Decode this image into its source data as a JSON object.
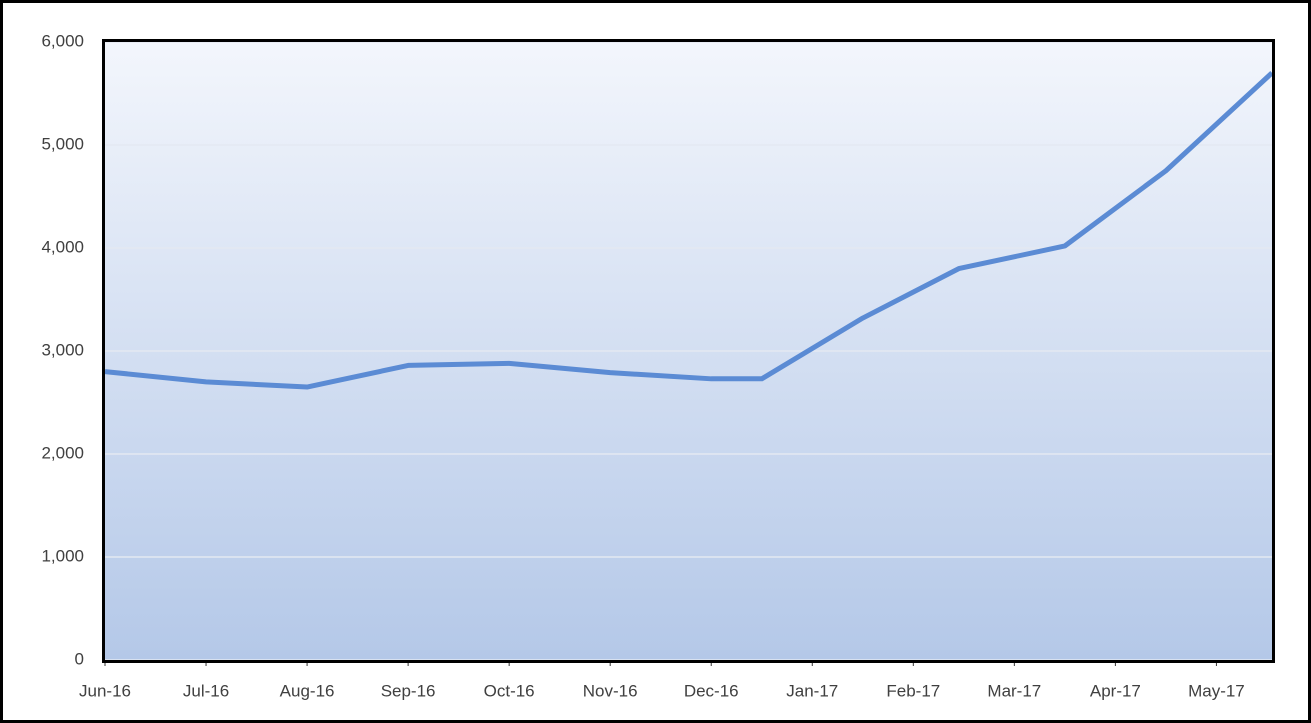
{
  "chart_data": {
    "type": "line",
    "x": [
      0,
      1,
      2,
      3,
      4,
      5,
      6,
      6.5,
      7.5,
      8.45,
      9.5,
      10.5,
      11.55
    ],
    "series": [
      {
        "color": "#5b8bd4",
        "values": [
          2800,
          2700,
          2650,
          2860,
          2880,
          2790,
          2730,
          2730,
          3320,
          3800,
          4020,
          4750,
          5700
        ]
      }
    ],
    "xlim": [
      0,
      11.55
    ],
    "xticks": [
      {
        "value": 0,
        "label": "Jun-16"
      },
      {
        "value": 1,
        "label": "Jul-16"
      },
      {
        "value": 2,
        "label": "Aug-16"
      },
      {
        "value": 3,
        "label": "Sep-16"
      },
      {
        "value": 4,
        "label": "Oct-16"
      },
      {
        "value": 5,
        "label": "Nov-16"
      },
      {
        "value": 6,
        "label": "Dec-16"
      },
      {
        "value": 7,
        "label": "Jan-17"
      },
      {
        "value": 8,
        "label": "Feb-17"
      },
      {
        "value": 9,
        "label": "Mar-17"
      },
      {
        "value": 10,
        "label": "Apr-17"
      },
      {
        "value": 11,
        "label": "May-17"
      }
    ],
    "ylim": [
      0,
      6000
    ],
    "yticks": [
      0,
      {
        "value": 1000,
        "label": "1,000"
      },
      {
        "value": 2000,
        "label": "2,000"
      },
      {
        "value": 3000,
        "label": "3,000"
      },
      {
        "value": 4000,
        "label": "4,000"
      },
      {
        "value": 5000,
        "label": "5,000"
      },
      {
        "value": 6000,
        "label": "6,000"
      }
    ],
    "grid": true
  }
}
